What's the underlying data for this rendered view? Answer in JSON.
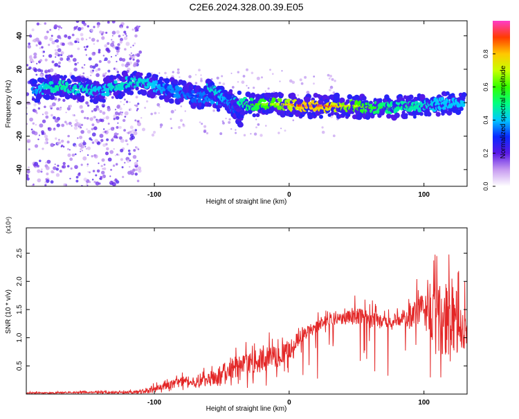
{
  "title": "C2E6.2024.328.00.39.E05",
  "colors": {
    "snr_line": "#e32626",
    "spectrogram_low": "#c79bf0",
    "spectrogram_mid": "#4a2be0",
    "spectrogram_high": "#ff2a2a"
  },
  "chart_data": [
    {
      "type": "heatmap",
      "xlabel": "Height of straight line (km)",
      "ylabel": "Frequency (Hz)",
      "xlim": [
        -195,
        132
      ],
      "ylim": [
        -50,
        49
      ],
      "x_ticks": [
        -100,
        0,
        100
      ],
      "x_tick_labels": [
        "-100",
        "0",
        "100"
      ],
      "y_ticks": [
        -40,
        -20,
        0,
        20,
        40
      ],
      "y_tick_labels": [
        "-40",
        "-20",
        "0",
        "20",
        "40"
      ],
      "colorbar": {
        "label": "Normalized spectral amplitude",
        "range": [
          0,
          1
        ],
        "ticks": [
          0.0,
          0.2,
          0.4,
          0.6,
          0.8
        ],
        "tick_labels": [
          "0.0",
          "0.2",
          "0.4",
          "0.6",
          "0.8"
        ]
      },
      "ridge": {
        "x": [
          -190,
          -180,
          -170,
          -160,
          -150,
          -140,
          -130,
          -120,
          -110,
          -100,
          -90,
          -80,
          -70,
          -60,
          -50,
          -40,
          -30,
          -20,
          -10,
          0,
          10,
          20,
          30,
          40,
          50,
          60,
          70,
          80,
          90,
          100,
          110,
          120,
          130
        ],
        "frequency": [
          6,
          9,
          10,
          9,
          8,
          7,
          9,
          12,
          12,
          10,
          8,
          6,
          4,
          3,
          2,
          0,
          -1,
          -1,
          -1,
          -1,
          -2,
          -2,
          -2,
          -2,
          -2,
          -3,
          -3,
          -3,
          -2,
          -2,
          -1,
          0,
          0
        ],
        "amplitude": [
          0.35,
          0.45,
          0.5,
          0.45,
          0.45,
          0.4,
          0.45,
          0.45,
          0.45,
          0.4,
          0.35,
          0.35,
          0.3,
          0.35,
          0.4,
          0.45,
          0.55,
          0.65,
          0.7,
          0.8,
          0.95,
          0.95,
          0.9,
          0.75,
          0.7,
          0.6,
          0.55,
          0.5,
          0.5,
          0.45,
          0.4,
          0.4,
          0.4
        ]
      },
      "branch": {
        "x": [
          -60,
          -55,
          -50,
          -45,
          -40,
          -35
        ],
        "frequency": [
          9,
          7,
          4,
          0,
          -5,
          -10
        ],
        "amplitude": [
          0.45,
          0.45,
          0.4,
          0.35,
          0.3,
          0.2
        ]
      }
    },
    {
      "type": "line",
      "xlabel": "Height of straight line (km)",
      "ylabel": "SNR (10 * v/v)",
      "y_multiplier": "(x10⁴)",
      "xlim": [
        -195,
        132
      ],
      "ylim": [
        0,
        2.95
      ],
      "x_ticks": [
        -100,
        0,
        100
      ],
      "x_tick_labels": [
        "-100",
        "0",
        "100"
      ],
      "y_ticks": [
        0.5,
        1.0,
        1.5,
        2.0,
        2.5
      ],
      "y_tick_labels": [
        "0.5",
        "1.0",
        "1.5",
        "2.0",
        "2.5"
      ],
      "series": [
        {
          "x": [
            -195,
            -180,
            -160,
            -140,
            -120,
            -110,
            -100,
            -90,
            -80,
            -70,
            -60,
            -50,
            -40,
            -30,
            -20,
            -10,
            0,
            10,
            20,
            30,
            40,
            50,
            60,
            70,
            80,
            90,
            100,
            110,
            120,
            130
          ],
          "y": [
            0.02,
            0.02,
            0.03,
            0.03,
            0.03,
            0.04,
            0.08,
            0.15,
            0.22,
            0.2,
            0.25,
            0.35,
            0.45,
            0.55,
            0.6,
            0.65,
            0.8,
            1.05,
            1.2,
            1.3,
            1.35,
            1.4,
            1.35,
            1.3,
            1.3,
            1.4,
            1.5,
            1.35,
            1.3,
            1.15
          ],
          "envelope": [
            0.04,
            0.05,
            0.06,
            0.07,
            0.08,
            0.12,
            0.2,
            0.3,
            0.45,
            0.4,
            0.5,
            0.75,
            0.9,
            0.95,
            1.1,
            1.15,
            1.2,
            1.3,
            1.45,
            1.5,
            1.6,
            1.8,
            1.7,
            1.55,
            1.6,
            1.9,
            2.2,
            2.6,
            2.95,
            2.0
          ]
        }
      ]
    }
  ]
}
